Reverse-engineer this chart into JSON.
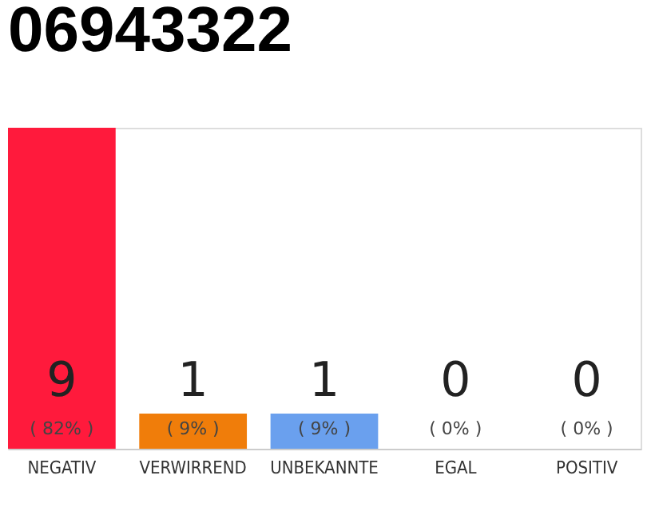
{
  "chart_data": {
    "type": "bar",
    "title": "06943322",
    "categories": [
      "NEGATIV",
      "VERWIRREND",
      "UNBEKANNTE",
      "EGAL",
      "POSITIV"
    ],
    "values": [
      82,
      9,
      9,
      0,
      0
    ],
    "colors": [
      "#ff1a3c",
      "#f07d0a",
      "#6aa0ee",
      "#8cd06a",
      "#22a846"
    ],
    "value_labels": [
      "( 82% )",
      "( 9% )",
      "( 9% )",
      "( 0% )",
      "( 0% )"
    ],
    "annotations": [
      "9",
      "1",
      "1",
      "0",
      "0"
    ],
    "tick_labels": "x",
    "grid": false
  }
}
